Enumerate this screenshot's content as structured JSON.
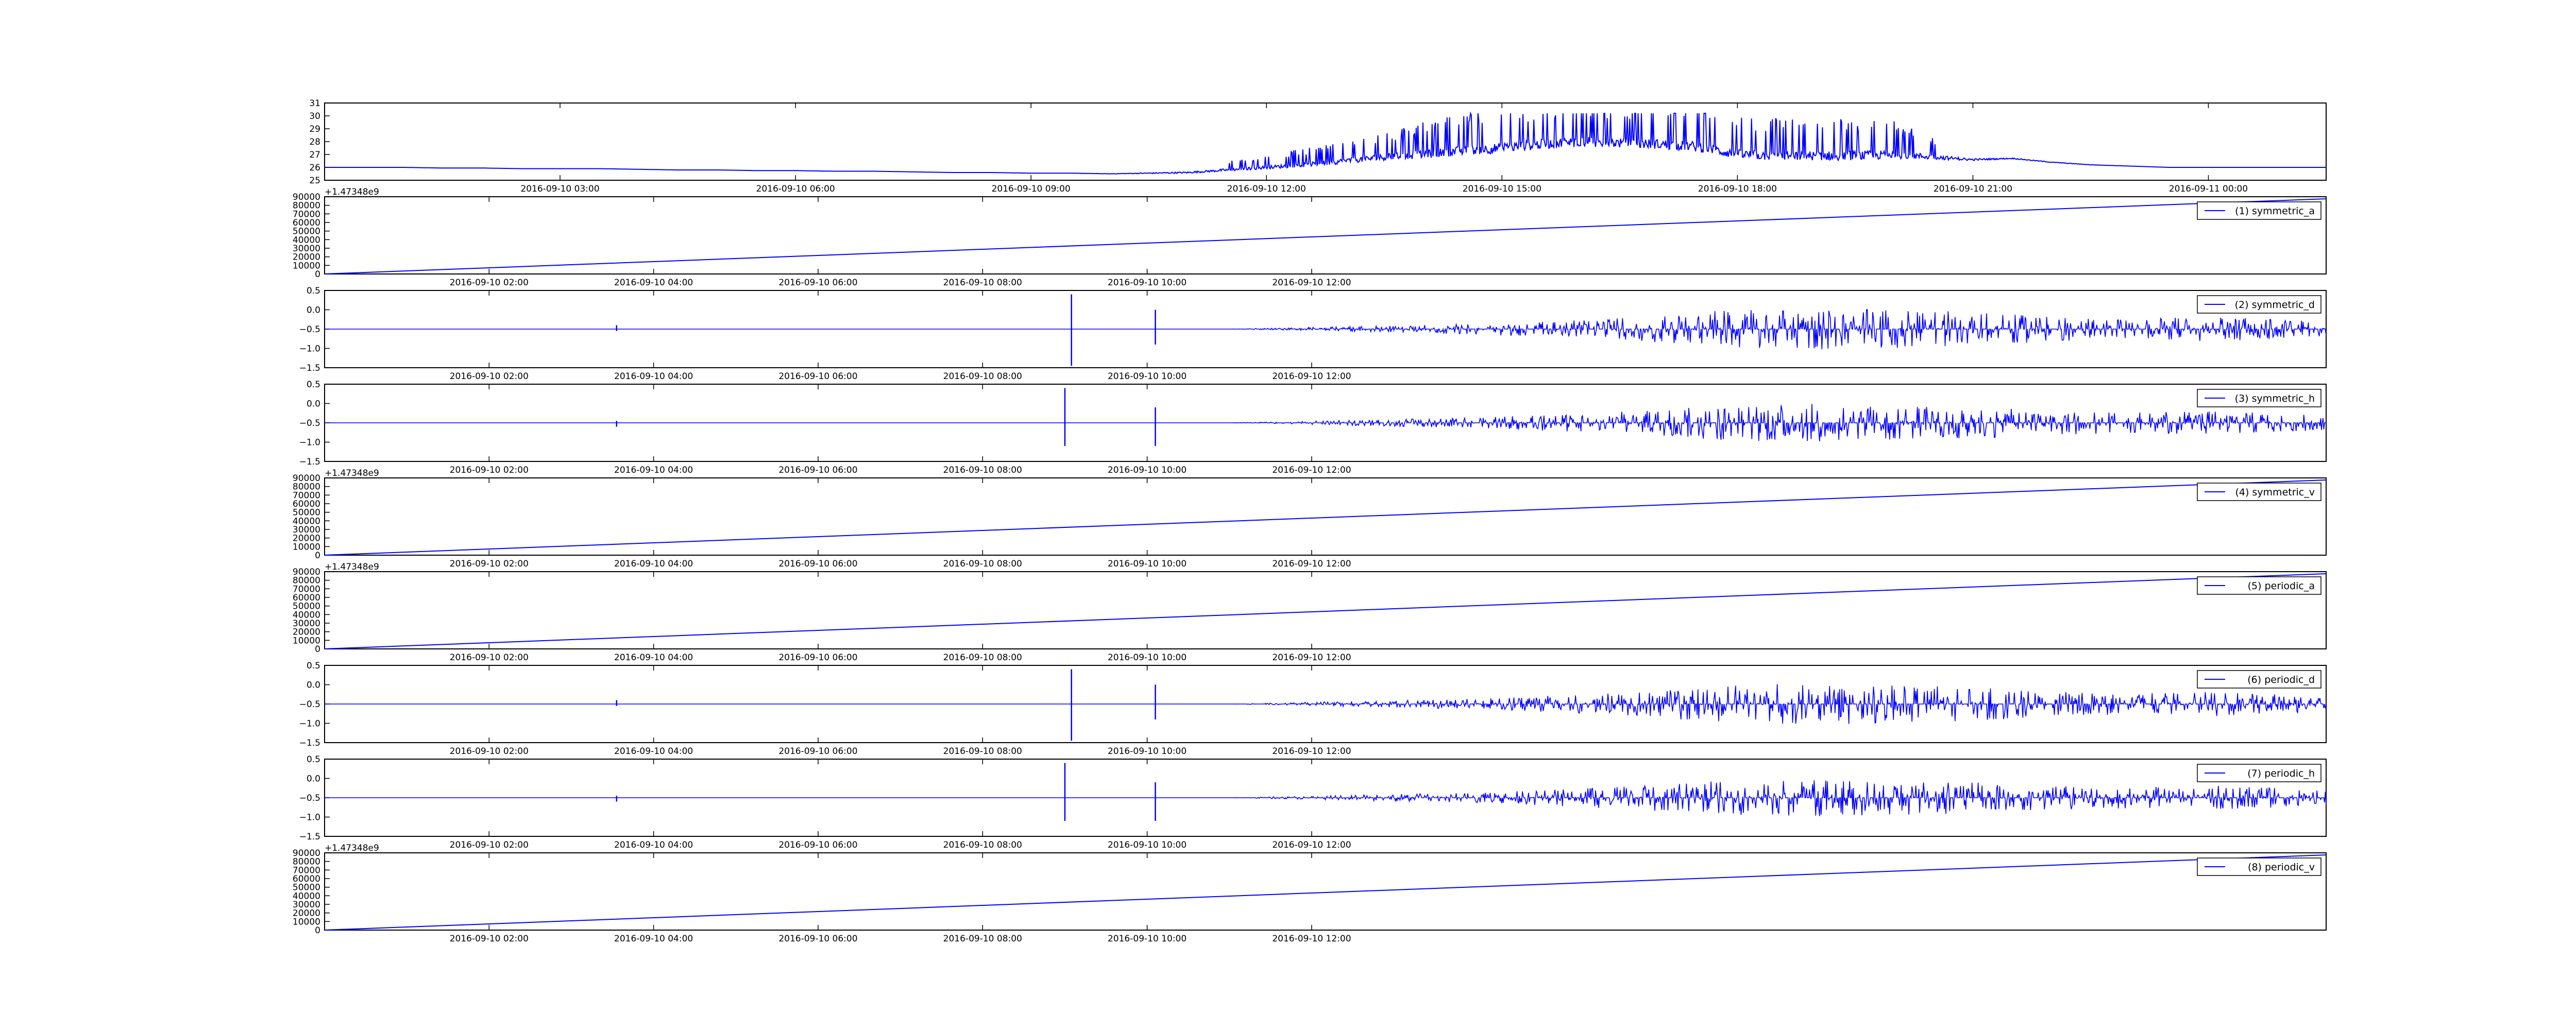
{
  "chart_data": [
    {
      "type": "line",
      "id": "temperature",
      "x_ticks": [
        "2016-09-10 03:00",
        "2016-09-10 06:00",
        "2016-09-10 09:00",
        "2016-09-10 12:00",
        "2016-09-10 15:00",
        "2016-09-10 18:00",
        "2016-09-10 21:00",
        "2016-09-11 00:00"
      ],
      "y_ticks": [
        "25",
        "26",
        "27",
        "28",
        "29",
        "30",
        "31"
      ],
      "xlim": [
        "2016-09-10 00:00",
        "2016-09-11 01:30"
      ],
      "ylim": [
        25,
        31
      ],
      "x_hours": [
        0,
        0.5,
        1,
        1.5,
        2,
        2.5,
        3,
        3.5,
        4,
        4.5,
        5,
        5.5,
        6,
        6.5,
        7,
        7.5,
        8,
        8.5,
        9,
        9.5,
        10,
        10.5,
        11,
        11.5,
        12,
        12.5,
        13,
        13.5,
        14,
        14.5,
        15,
        15.5,
        16,
        16.5,
        17,
        17.5,
        18,
        18.5,
        19,
        19.5,
        20,
        20.5,
        21,
        21.5,
        22,
        22.5,
        23,
        23.5,
        24,
        24.5,
        25,
        25.5
      ],
      "values": [
        26.0,
        26.0,
        26.0,
        25.95,
        25.95,
        25.9,
        25.9,
        25.9,
        25.85,
        25.8,
        25.8,
        25.75,
        25.75,
        25.7,
        25.7,
        25.65,
        25.6,
        25.6,
        25.55,
        25.55,
        25.5,
        25.55,
        25.6,
        25.8,
        26.0,
        26.2,
        26.5,
        26.8,
        27.0,
        27.3,
        27.5,
        27.8,
        28.0,
        27.9,
        27.8,
        27.6,
        27.0,
        26.9,
        26.9,
        26.9,
        27.0,
        26.8,
        26.6,
        26.7,
        26.4,
        26.2,
        26.1,
        26.0,
        26.0,
        26.0,
        26.0,
        26.0
      ],
      "peaks_max": [
        0,
        0,
        0,
        0,
        0,
        0,
        0,
        0,
        0,
        0,
        0,
        0,
        0,
        0,
        0,
        0,
        0,
        0,
        0,
        0,
        0.1,
        0.3,
        0.5,
        0.8,
        1.0,
        1.3,
        1.6,
        2.0,
        2.5,
        3.0,
        3.2,
        3.0,
        3.2,
        3.0,
        3.0,
        3.2,
        3.0,
        3.0,
        2.8,
        3.0,
        2.6,
        1.5,
        0.6,
        0.3,
        0.2,
        0.1,
        0,
        0,
        0,
        0,
        0,
        0
      ],
      "color": "#0000ff",
      "offset_label": ""
    },
    {
      "type": "line",
      "id": "ramp-1",
      "legend": "(1) symmetric_a",
      "kind": "ramp",
      "x_ticks": [
        "2016-09-10 02:00",
        "2016-09-10 04:00",
        "2016-09-10 06:00",
        "2016-09-10 08:00",
        "2016-09-10 10:00",
        "2016-09-10 12:00"
      ],
      "y_ticks": [
        "0",
        "10000",
        "20000",
        "30000",
        "40000",
        "50000",
        "60000",
        "70000",
        "80000",
        "90000"
      ],
      "xlim_seconds": [
        0,
        87600
      ],
      "ylim": [
        0,
        90000
      ],
      "x_seconds": [
        0,
        87600
      ],
      "values": [
        0,
        87600
      ],
      "offset_label": "+1.47348e9",
      "color": "#0000ff"
    },
    {
      "type": "line",
      "id": "signal-2",
      "legend": "(2) symmetric_d",
      "kind": "signal",
      "x_ticks": [
        "2016-09-10 02:00",
        "2016-09-10 04:00",
        "2016-09-10 06:00",
        "2016-09-10 08:00",
        "2016-09-10 10:00",
        "2016-09-10 12:00"
      ],
      "y_ticks": [
        "−1.5",
        "−1.0",
        "−0.5",
        "0.0",
        "0.5"
      ],
      "ylim": [
        -1.5,
        0.5
      ],
      "baseline": -0.5,
      "spikes": [
        {
          "x_hours": 3.55,
          "up": 0.1,
          "down": 0.05
        },
        {
          "x_hours": 9.08,
          "up": 0.9,
          "down": 0.95
        },
        {
          "x_hours": 10.1,
          "up": 0.5,
          "down": 0.4
        }
      ],
      "activity": [
        0,
        0,
        0,
        0,
        0,
        0,
        0,
        0,
        0,
        0,
        0,
        0,
        0.05,
        0.1,
        0.15,
        0.25,
        0.35,
        0.55,
        0.6,
        0.55,
        0.5,
        0.35,
        0.3,
        0.35,
        0.25,
        0.1,
        0,
        0,
        0
      ],
      "offset_label": "",
      "color": "#0000ff"
    },
    {
      "type": "line",
      "id": "signal-3",
      "legend": "(3) symmetric_h",
      "kind": "signal",
      "x_ticks": [
        "2016-09-10 02:00",
        "2016-09-10 04:00",
        "2016-09-10 06:00",
        "2016-09-10 08:00",
        "2016-09-10 10:00",
        "2016-09-10 12:00"
      ],
      "y_ticks": [
        "−1.5",
        "−1.0",
        "−0.5",
        "0.0",
        "0.5"
      ],
      "ylim": [
        -1.5,
        0.5
      ],
      "baseline": -0.5,
      "spikes": [
        {
          "x_hours": 3.55,
          "up": 0.05,
          "down": 0.1
        },
        {
          "x_hours": 9.0,
          "up": 0.9,
          "down": 0.6
        },
        {
          "x_hours": 10.1,
          "up": 0.4,
          "down": 0.6
        }
      ],
      "activity": [
        0,
        0,
        0,
        0,
        0,
        0,
        0,
        0,
        0,
        0,
        0,
        0,
        0.05,
        0.1,
        0.15,
        0.25,
        0.35,
        0.5,
        0.55,
        0.5,
        0.45,
        0.35,
        0.3,
        0.35,
        0.25,
        0.1,
        0,
        0,
        0
      ],
      "offset_label": "",
      "color": "#0000ff"
    },
    {
      "type": "line",
      "id": "ramp-4",
      "legend": "(4) symmetric_v",
      "kind": "ramp",
      "x_ticks": [
        "2016-09-10 02:00",
        "2016-09-10 04:00",
        "2016-09-10 06:00",
        "2016-09-10 08:00",
        "2016-09-10 10:00",
        "2016-09-10 12:00"
      ],
      "y_ticks": [
        "0",
        "10000",
        "20000",
        "30000",
        "40000",
        "50000",
        "60000",
        "70000",
        "80000",
        "90000"
      ],
      "xlim_seconds": [
        0,
        87600
      ],
      "ylim": [
        0,
        90000
      ],
      "x_seconds": [
        0,
        87600
      ],
      "values": [
        0,
        87600
      ],
      "offset_label": "+1.47348e9",
      "color": "#0000ff"
    },
    {
      "type": "line",
      "id": "ramp-5",
      "legend": "(5) periodic_a",
      "kind": "ramp",
      "x_ticks": [
        "2016-09-10 02:00",
        "2016-09-10 04:00",
        "2016-09-10 06:00",
        "2016-09-10 08:00",
        "2016-09-10 10:00",
        "2016-09-10 12:00"
      ],
      "y_ticks": [
        "0",
        "10000",
        "20000",
        "30000",
        "40000",
        "50000",
        "60000",
        "70000",
        "80000",
        "90000"
      ],
      "xlim_seconds": [
        0,
        87600
      ],
      "ylim": [
        0,
        90000
      ],
      "x_seconds": [
        0,
        87600
      ],
      "values": [
        0,
        87600
      ],
      "offset_label": "+1.47348e9",
      "color": "#0000ff"
    },
    {
      "type": "line",
      "id": "signal-6",
      "legend": "(6) periodic_d",
      "kind": "signal",
      "x_ticks": [
        "2016-09-10 02:00",
        "2016-09-10 04:00",
        "2016-09-10 06:00",
        "2016-09-10 08:00",
        "2016-09-10 10:00",
        "2016-09-10 12:00"
      ],
      "y_ticks": [
        "−1.5",
        "−1.0",
        "−0.5",
        "0.0",
        "0.5"
      ],
      "ylim": [
        -1.5,
        0.5
      ],
      "baseline": -0.5,
      "spikes": [
        {
          "x_hours": 3.55,
          "up": 0.1,
          "down": 0.05
        },
        {
          "x_hours": 9.08,
          "up": 0.9,
          "down": 0.95
        },
        {
          "x_hours": 10.1,
          "up": 0.5,
          "down": 0.4
        }
      ],
      "activity": [
        0,
        0,
        0,
        0,
        0,
        0,
        0,
        0,
        0,
        0,
        0,
        0,
        0.05,
        0.1,
        0.15,
        0.25,
        0.35,
        0.55,
        0.6,
        0.55,
        0.5,
        0.35,
        0.3,
        0.35,
        0.25,
        0.1,
        0,
        0,
        0
      ],
      "offset_label": "",
      "color": "#0000ff"
    },
    {
      "type": "line",
      "id": "signal-7",
      "legend": "(7) periodic_h",
      "kind": "signal",
      "x_ticks": [
        "2016-09-10 02:00",
        "2016-09-10 04:00",
        "2016-09-10 06:00",
        "2016-09-10 08:00",
        "2016-09-10 10:00",
        "2016-09-10 12:00"
      ],
      "y_ticks": [
        "−1.5",
        "−1.0",
        "−0.5",
        "0.0",
        "0.5"
      ],
      "ylim": [
        -1.5,
        0.5
      ],
      "baseline": -0.5,
      "spikes": [
        {
          "x_hours": 3.55,
          "up": 0.05,
          "down": 0.1
        },
        {
          "x_hours": 9.0,
          "up": 0.9,
          "down": 0.6
        },
        {
          "x_hours": 10.1,
          "up": 0.4,
          "down": 0.6
        }
      ],
      "activity": [
        0,
        0,
        0,
        0,
        0,
        0,
        0,
        0,
        0,
        0,
        0,
        0,
        0.05,
        0.1,
        0.15,
        0.25,
        0.35,
        0.5,
        0.55,
        0.5,
        0.45,
        0.35,
        0.3,
        0.35,
        0.25,
        0.1,
        0,
        0,
        0
      ],
      "offset_label": "",
      "color": "#0000ff"
    },
    {
      "type": "line",
      "id": "ramp-8",
      "legend": "(8) periodic_v",
      "kind": "ramp",
      "x_ticks": [
        "2016-09-10 02:00",
        "2016-09-10 04:00",
        "2016-09-10 06:00",
        "2016-09-10 08:00",
        "2016-09-10 10:00",
        "2016-09-10 12:00"
      ],
      "y_ticks": [
        "0",
        "10000",
        "20000",
        "30000",
        "40000",
        "50000",
        "60000",
        "70000",
        "80000",
        "90000"
      ],
      "xlim_seconds": [
        0,
        87600
      ],
      "ylim": [
        0,
        90000
      ],
      "x_seconds": [
        0,
        87600
      ],
      "values": [
        0,
        87600
      ],
      "offset_label": "+1.47348e9",
      "color": "#0000ff"
    }
  ]
}
